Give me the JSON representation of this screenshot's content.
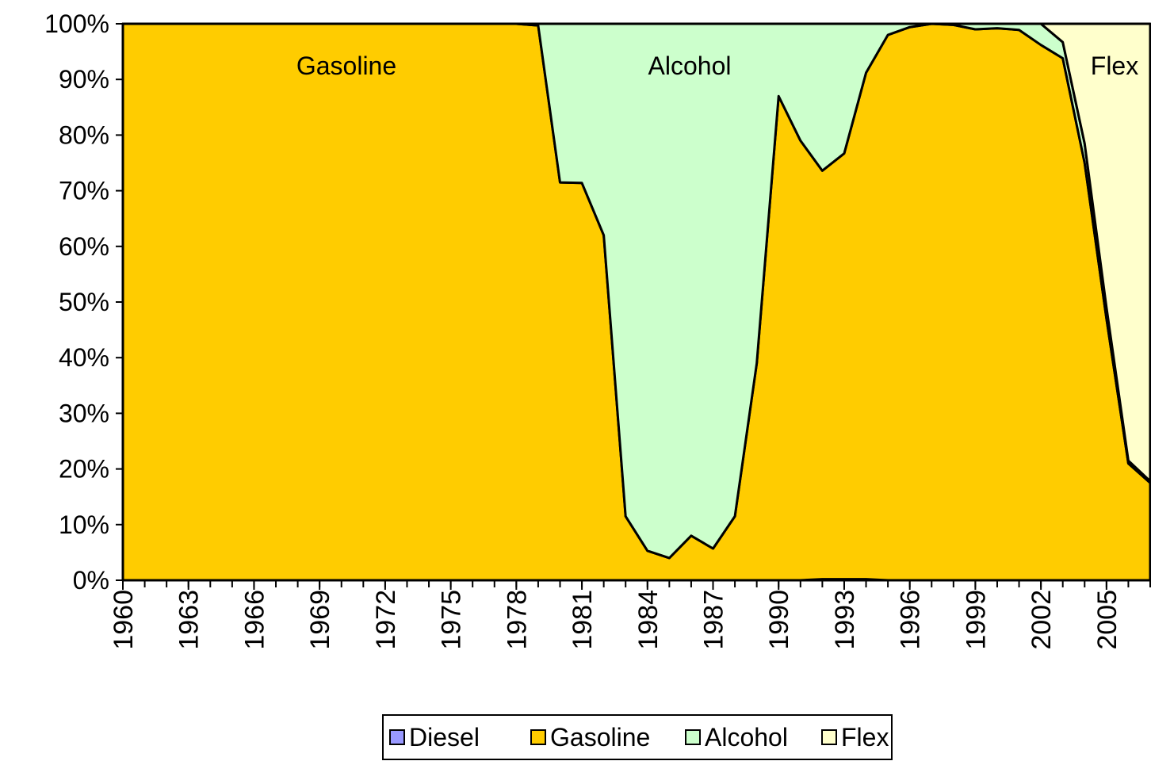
{
  "chart_data": {
    "type": "stacked-area",
    "x": [
      1960,
      1961,
      1962,
      1963,
      1964,
      1965,
      1966,
      1967,
      1968,
      1969,
      1970,
      1971,
      1972,
      1973,
      1974,
      1975,
      1976,
      1977,
      1978,
      1979,
      1980,
      1981,
      1982,
      1983,
      1984,
      1985,
      1986,
      1987,
      1988,
      1989,
      1990,
      1991,
      1992,
      1993,
      1994,
      1995,
      1996,
      1997,
      1998,
      1999,
      2000,
      2001,
      2002,
      2003,
      2004,
      2005,
      2006,
      2007
    ],
    "xlim": [
      1960,
      2007
    ],
    "xticks": [
      1960,
      1963,
      1966,
      1969,
      1972,
      1975,
      1978,
      1981,
      1984,
      1987,
      1990,
      1993,
      1996,
      1999,
      2002,
      2005
    ],
    "ylim": [
      0,
      100
    ],
    "yticks": [
      {
        "value": 0,
        "label": "0%"
      },
      {
        "value": 10,
        "label": "10%"
      },
      {
        "value": 20,
        "label": "20%"
      },
      {
        "value": 30,
        "label": "30%"
      },
      {
        "value": 40,
        "label": "40%"
      },
      {
        "value": 50,
        "label": "50%"
      },
      {
        "value": 60,
        "label": "60%"
      },
      {
        "value": 70,
        "label": "70%"
      },
      {
        "value": 80,
        "label": "80%"
      },
      {
        "value": 90,
        "label": "90%"
      },
      {
        "value": 100,
        "label": "100%"
      }
    ],
    "series": [
      {
        "name": "Diesel",
        "color": "#9999ff",
        "values": [
          0,
          0,
          0,
          0,
          0,
          0,
          0,
          0,
          0,
          0,
          0,
          0,
          0,
          0,
          0,
          0,
          0,
          0,
          0,
          0,
          0,
          0,
          0,
          0,
          0,
          0,
          0,
          0,
          0,
          0,
          0,
          0,
          0.2,
          0.2,
          0.2,
          0,
          0,
          0,
          0,
          0,
          0,
          0,
          0,
          0,
          0,
          0,
          0,
          0
        ]
      },
      {
        "name": "Gasoline",
        "color": "#ffcc00",
        "values": [
          100,
          100,
          100,
          100,
          100,
          100,
          100,
          100,
          100,
          100,
          100,
          100,
          100,
          100,
          100,
          100,
          100,
          100,
          100,
          99.7,
          71.5,
          71.4,
          62,
          11.5,
          5.3,
          4,
          8,
          5.7,
          11.5,
          39,
          87,
          79,
          73.4,
          76.5,
          91,
          98,
          99.4,
          100,
          99.8,
          99,
          99.2,
          98.9,
          96.2,
          93.8,
          75,
          47,
          21,
          17.5
        ]
      },
      {
        "name": "Alcohol",
        "color": "#ccffcc",
        "values": [
          0,
          0,
          0,
          0,
          0,
          0,
          0,
          0,
          0,
          0,
          0,
          0,
          0,
          0,
          0,
          0,
          0,
          0,
          0,
          0.3,
          28.5,
          28.6,
          38,
          88.5,
          94.7,
          96,
          92,
          94.3,
          88.5,
          61,
          13,
          21,
          26.4,
          23.3,
          8.8,
          2,
          0.6,
          0,
          0.2,
          1,
          0.8,
          1.1,
          3.8,
          2.9,
          3.5,
          2,
          0.5,
          0.3
        ]
      },
      {
        "name": "Flex",
        "color": "#ffffcc",
        "values": [
          0,
          0,
          0,
          0,
          0,
          0,
          0,
          0,
          0,
          0,
          0,
          0,
          0,
          0,
          0,
          0,
          0,
          0,
          0,
          0,
          0,
          0,
          0,
          0,
          0,
          0,
          0,
          0,
          0,
          0,
          0,
          0,
          0,
          0,
          0,
          0,
          0,
          0,
          0,
          0,
          0,
          0,
          0,
          3.3,
          21.5,
          51,
          78.5,
          82.2
        ]
      }
    ],
    "annotations": [
      "Gasoline",
      "Alcohol",
      "Flex"
    ]
  }
}
